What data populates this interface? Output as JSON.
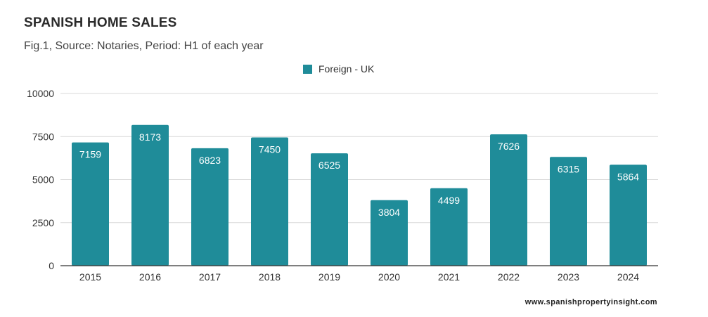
{
  "header": {
    "title": "SPANISH HOME SALES",
    "subtitle": "Fig.1, Source: Notaries, Period: H1 of each year"
  },
  "footer": {
    "website": "www.spanishpropertyinsight.com"
  },
  "colors": {
    "bar": "#1f8c99",
    "grid": "#d9d9d9",
    "axis": "#333333"
  },
  "chart_data": {
    "type": "bar",
    "title": "SPANISH HOME SALES",
    "subtitle": "Fig.1, Source: Notaries, Period: H1 of each year",
    "categories": [
      "2015",
      "2016",
      "2017",
      "2018",
      "2019",
      "2020",
      "2021",
      "2022",
      "2023",
      "2024"
    ],
    "series": [
      {
        "name": "Foreign - UK",
        "values": [
          7159,
          8173,
          6823,
          7450,
          6525,
          3804,
          4499,
          7626,
          6315,
          5864
        ]
      }
    ],
    "yticks": [
      "0",
      "2500",
      "5000",
      "7500",
      "10000"
    ],
    "ylim": [
      0,
      10000
    ],
    "grid": true,
    "legend": "top-center",
    "data_labels": true
  }
}
